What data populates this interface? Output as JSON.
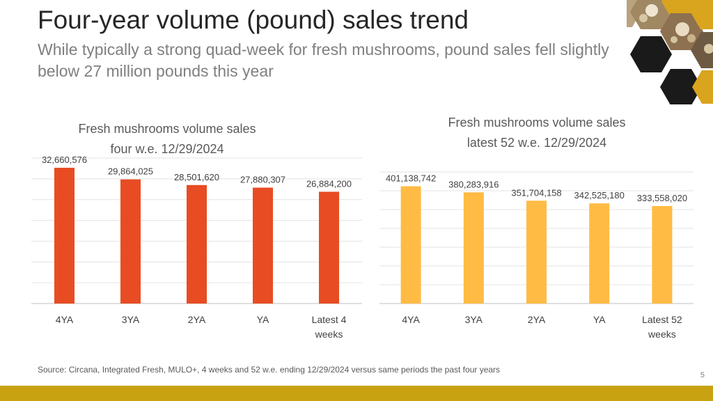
{
  "header": {
    "title": "Four-year volume (pound) sales trend",
    "subtitle": "While typically a strong quad-week for fresh mushrooms, pound sales fell slightly below 27 million pounds this year"
  },
  "chart_data": [
    {
      "type": "bar",
      "title_lines": [
        "Fresh mushrooms volume sales",
        "four w.e. 12/29/2024"
      ],
      "categories": [
        "4YA",
        "3YA",
        "2YA",
        "YA",
        "Latest 4 weeks"
      ],
      "category_lines": [
        [
          "4YA"
        ],
        [
          "3YA"
        ],
        [
          "2YA"
        ],
        [
          "YA"
        ],
        [
          "Latest 4",
          "weeks"
        ]
      ],
      "values": [
        32660576,
        29864025,
        28501620,
        27880307,
        26884200
      ],
      "value_labels": [
        "32,660,576",
        "29,864,025",
        "28,501,620",
        "27,880,307",
        "26,884,200"
      ],
      "ylim": [
        0,
        35000000
      ],
      "grid": true,
      "color": "#e84c22"
    },
    {
      "type": "bar",
      "title_lines": [
        "Fresh mushrooms volume sales",
        "latest 52 w.e. 12/29/2024"
      ],
      "categories": [
        "4YA",
        "3YA",
        "2YA",
        "YA",
        "Latest 52 weeks"
      ],
      "category_lines": [
        [
          "4YA"
        ],
        [
          "3YA"
        ],
        [
          "2YA"
        ],
        [
          "YA"
        ],
        [
          "Latest 52",
          "weeks"
        ]
      ],
      "values": [
        401138742,
        380283916,
        351704158,
        342525180,
        333558020
      ],
      "value_labels": [
        "401,138,742",
        "380,283,916",
        "351,704,158",
        "342,525,180",
        "333,558,020"
      ],
      "ylim": [
        0,
        450000000
      ],
      "grid": true,
      "color": "#ffbb44"
    }
  ],
  "footer": {
    "source": "Source: Circana, Integrated Fresh, MULO+, 4 weeks and 52 w.e. ending 12/29/2024 versus same periods the past four years",
    "page_number": "5"
  },
  "colors": {
    "accent_gold": "#c8a210",
    "hex_dark": "#1a1a1a",
    "hex_gold": "#d9a41e"
  },
  "decoration": {
    "image": "mushroom-photo-hexagon-mosaic"
  }
}
